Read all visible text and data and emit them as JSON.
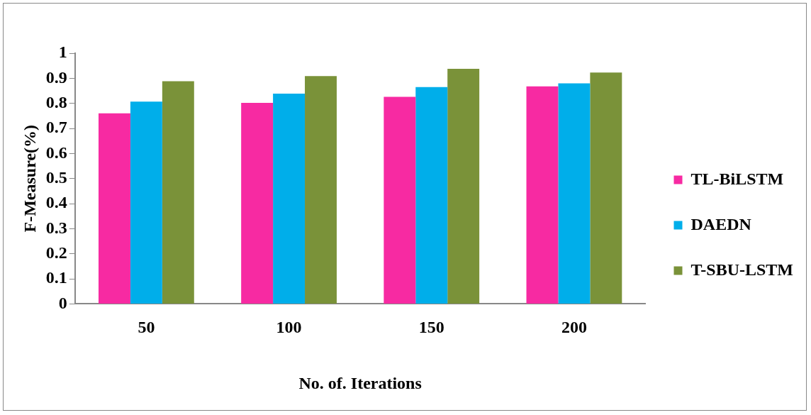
{
  "chart_data": {
    "type": "bar",
    "xlabel": "No. of. Iterations",
    "ylabel": "F-Measure(%)",
    "categories": [
      "50",
      "100",
      "150",
      "200"
    ],
    "series": [
      {
        "name": "TL-BiLSTM",
        "color": "#f72aa2",
        "values": [
          0.76,
          0.802,
          0.826,
          0.868
        ]
      },
      {
        "name": "DAEDN",
        "color": "#00aeea",
        "values": [
          0.807,
          0.839,
          0.865,
          0.88
        ]
      },
      {
        "name": "T-SBU-LSTM",
        "color": "#7a9239",
        "values": [
          0.888,
          0.909,
          0.938,
          0.923
        ]
      }
    ],
    "ylim": [
      0,
      1
    ],
    "yticks": [
      0,
      0.1,
      0.2,
      0.3,
      0.4,
      0.5,
      0.6,
      0.7,
      0.8,
      0.9,
      1
    ],
    "grid": false,
    "legend": "right"
  }
}
